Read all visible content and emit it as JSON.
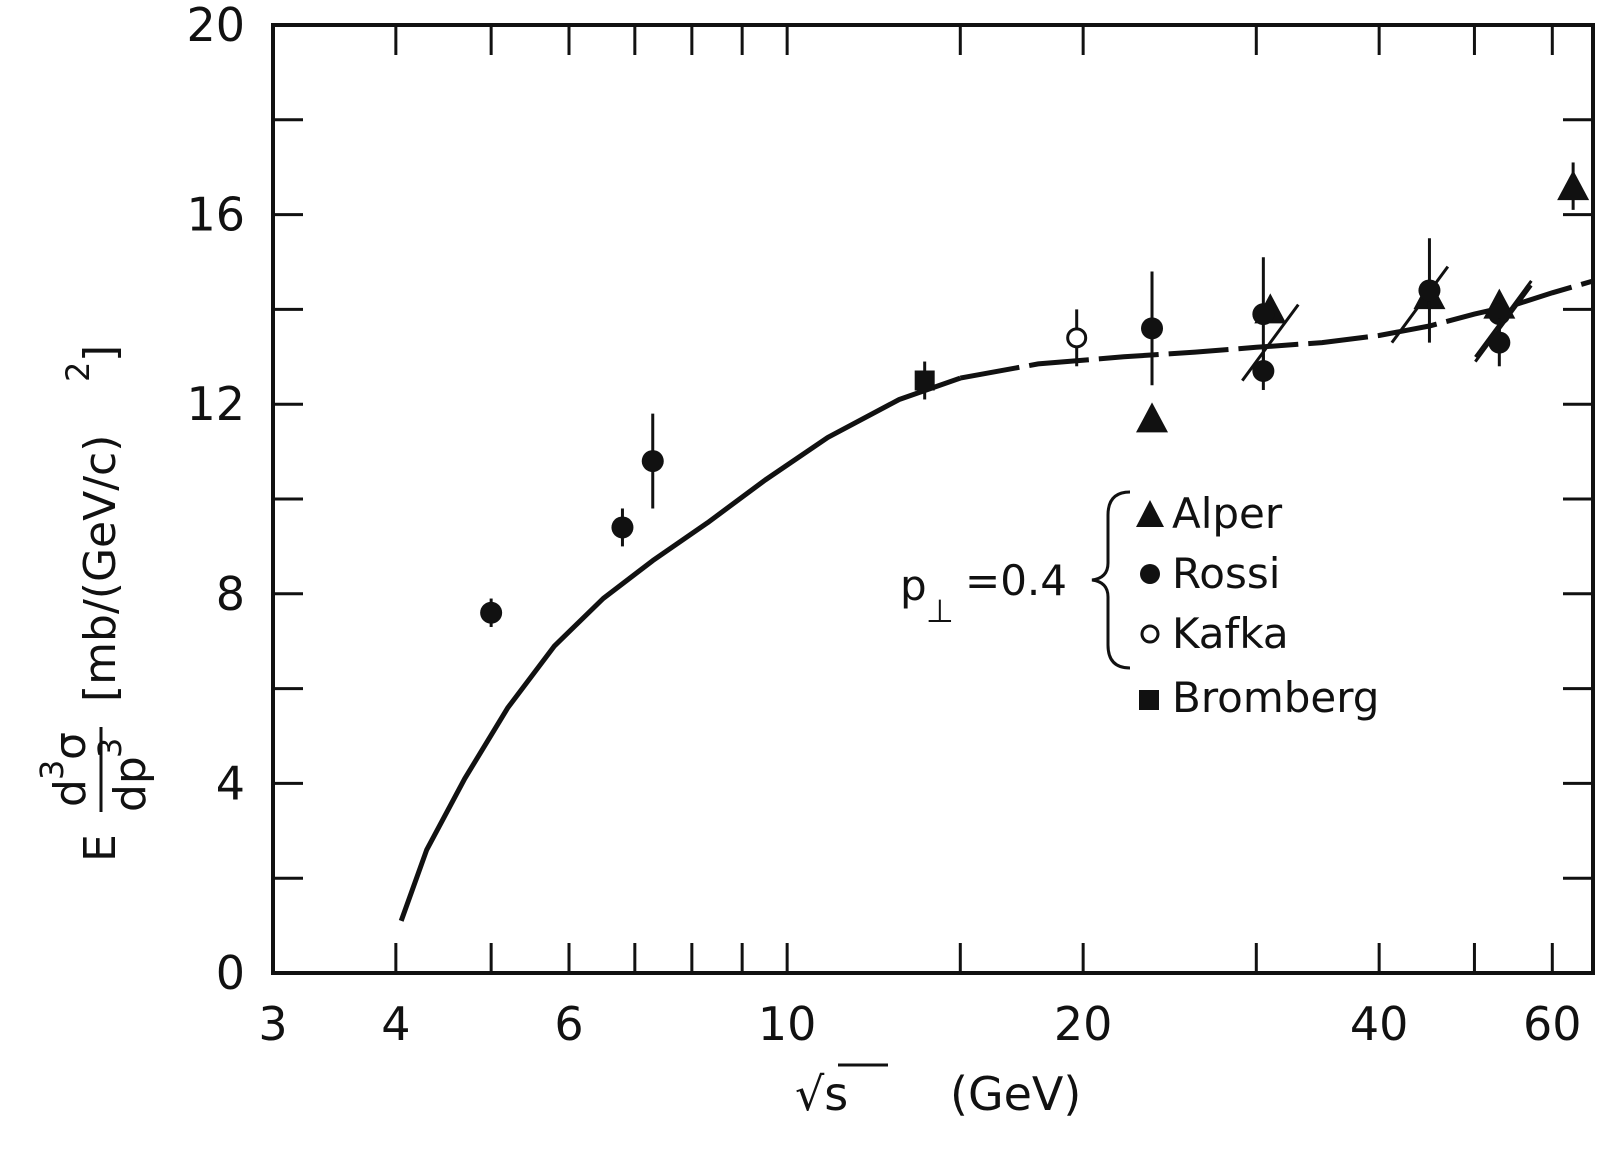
{
  "chart_data": {
    "type": "scatter",
    "x_scale": "log",
    "xlim": [
      3,
      66
    ],
    "ylim": [
      0,
      20
    ],
    "x_ticks_labeled": [
      3,
      4,
      6,
      10,
      20,
      40,
      60
    ],
    "x_tick_labels": [
      "3",
      "4",
      "6",
      "10",
      "20",
      "40",
      "60"
    ],
    "y_ticks_labeled": [
      0,
      4,
      8,
      12,
      16,
      20
    ],
    "y_tick_labels": [
      "0",
      "4",
      "8",
      "12",
      "16",
      "20"
    ],
    "xlabel_parts": [
      "√s",
      "(GeV)"
    ],
    "ylabel_parts": {
      "prefix": "E",
      "frac_num": "d",
      "frac_num_sup": "3",
      "frac_num_sym": "σ",
      "frac_den": "dp",
      "frac_den_sup": "3",
      "unit": "[mb/(GeV/c)",
      "unit_sup": "2",
      "unit_close": "]"
    },
    "annotation": {
      "p": "p",
      "sub": "⊥",
      "value": "=0.4"
    },
    "legend": [
      {
        "marker": "triangle",
        "label": "Alper"
      },
      {
        "marker": "circle",
        "label": "Rossi"
      },
      {
        "marker": "open-circle",
        "label": "Kafka"
      },
      {
        "marker": "square",
        "label": "Bromberg"
      }
    ],
    "series": [
      {
        "name": "Alper",
        "marker": "triangle",
        "points": [
          {
            "x": 23.5,
            "y": 11.7,
            "err": 0
          },
          {
            "x": 31,
            "y": 14.0,
            "err": 0
          },
          {
            "x": 45,
            "y": 14.3,
            "err": 0
          },
          {
            "x": 53,
            "y": 14.1,
            "err": 0
          },
          {
            "x": 63,
            "y": 16.6,
            "err": 0.5
          }
        ]
      },
      {
        "name": "Rossi",
        "marker": "circle",
        "points": [
          {
            "x": 5,
            "y": 7.6,
            "err": 0.3
          },
          {
            "x": 6.8,
            "y": 9.4,
            "err": 0.4
          },
          {
            "x": 7.3,
            "y": 10.8,
            "err": 1.0
          },
          {
            "x": 23.5,
            "y": 13.6,
            "err": 1.2
          },
          {
            "x": 30.5,
            "y": 13.9,
            "err": 1.2
          },
          {
            "x": 30.5,
            "y": 12.7,
            "err": 0.4
          },
          {
            "x": 45,
            "y": 14.4,
            "err": 1.1
          },
          {
            "x": 53,
            "y": 13.9,
            "err": 0.4
          },
          {
            "x": 53,
            "y": 13.3,
            "err": 0.5
          }
        ]
      },
      {
        "name": "Kafka",
        "marker": "open-circle",
        "points": [
          {
            "x": 19.7,
            "y": 13.4,
            "err": 0.6
          }
        ]
      },
      {
        "name": "Bromberg",
        "marker": "square",
        "points": [
          {
            "x": 13.8,
            "y": 12.5,
            "err": 0.4
          }
        ]
      }
    ],
    "curve": {
      "style": "solid-then-dashed",
      "x": [
        4.05,
        4.3,
        4.7,
        5.2,
        5.8,
        6.5,
        7.3,
        8.3,
        9.5,
        11,
        13,
        15,
        18,
        22,
        26,
        30,
        35,
        40,
        45,
        50,
        55,
        60,
        66
      ],
      "y": [
        1.1,
        2.6,
        4.1,
        5.6,
        6.9,
        7.9,
        8.7,
        9.5,
        10.4,
        11.3,
        12.1,
        12.55,
        12.85,
        13.0,
        13.1,
        13.2,
        13.3,
        13.45,
        13.65,
        13.9,
        14.1,
        14.35,
        14.6
      ]
    },
    "slash_marks": [
      {
        "x": 31,
        "y": 13.3
      },
      {
        "x": 44,
        "y": 14.1
      },
      {
        "x": 53.5,
        "y": 13.8
      },
      {
        "x": 53.5,
        "y": 13.7
      }
    ]
  }
}
